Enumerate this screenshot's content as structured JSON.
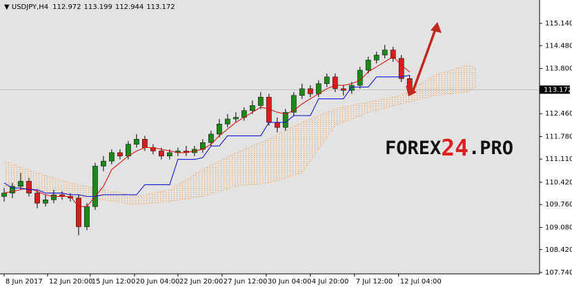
{
  "chart_data": {
    "type": "candlestick",
    "symbol": "USDJPY,H4",
    "header_ohlc": [
      {
        "value": 112.972,
        "label": "112.972"
      },
      {
        "value": 113.199,
        "label": "113.199"
      },
      {
        "value": 112.944,
        "label": "112.944"
      },
      {
        "value": 113.172,
        "label": "113.172"
      }
    ],
    "open": [
      110.0,
      110.1,
      110.3,
      110.45,
      110.1,
      109.8,
      109.9,
      110.05,
      110.0,
      109.95,
      109.1,
      109.7,
      110.9,
      111.05,
      111.3,
      111.2,
      111.55,
      111.7,
      111.45,
      111.35,
      111.2,
      111.3,
      111.35,
      111.3,
      111.4,
      111.6,
      111.85,
      112.15,
      112.3,
      112.35,
      112.55,
      112.7,
      112.95,
      112.2,
      112.05,
      112.5,
      113.0,
      113.2,
      113.05,
      113.35,
      113.55,
      113.2,
      113.15,
      113.3,
      113.75,
      114.05,
      114.2,
      114.35,
      114.1,
      113.5
    ],
    "high": [
      110.25,
      110.4,
      110.7,
      110.55,
      110.2,
      110.05,
      110.2,
      110.15,
      110.1,
      110.05,
      109.8,
      111.0,
      111.2,
      111.4,
      111.4,
      111.65,
      111.85,
      111.8,
      111.55,
      111.45,
      111.4,
      111.45,
      111.5,
      111.5,
      111.7,
      111.95,
      112.3,
      112.45,
      112.5,
      112.65,
      112.85,
      113.1,
      113.05,
      112.35,
      112.6,
      113.1,
      113.35,
      113.3,
      113.45,
      113.65,
      113.65,
      113.3,
      113.4,
      113.85,
      114.15,
      114.3,
      114.5,
      114.45,
      114.2,
      113.6
    ],
    "low": [
      109.85,
      109.95,
      110.2,
      110.0,
      109.65,
      109.7,
      109.8,
      109.9,
      109.85,
      108.85,
      109.0,
      109.6,
      110.75,
      110.95,
      111.1,
      111.1,
      111.45,
      111.35,
      111.25,
      111.1,
      111.1,
      111.2,
      111.2,
      111.2,
      111.3,
      111.5,
      111.75,
      112.05,
      112.2,
      112.25,
      112.45,
      112.6,
      112.1,
      111.9,
      111.95,
      112.4,
      112.9,
      112.95,
      112.95,
      113.25,
      113.1,
      113.0,
      113.05,
      113.2,
      113.65,
      113.95,
      114.1,
      114.0,
      113.4,
      113.05
    ],
    "close": [
      110.1,
      110.3,
      110.45,
      110.1,
      109.8,
      109.9,
      110.05,
      110.0,
      109.95,
      109.1,
      109.7,
      110.9,
      111.05,
      111.3,
      111.2,
      111.55,
      111.7,
      111.45,
      111.35,
      111.2,
      111.3,
      111.35,
      111.3,
      111.4,
      111.6,
      111.85,
      112.15,
      112.3,
      112.35,
      112.55,
      112.7,
      112.95,
      112.2,
      112.05,
      112.5,
      113.0,
      113.2,
      113.05,
      113.35,
      113.55,
      113.2,
      113.15,
      113.3,
      113.75,
      114.05,
      114.2,
      114.35,
      114.1,
      113.5,
      113.17
    ],
    "up_color": "#1b8a1b",
    "down_color": "#d81e1e",
    "lines": [
      {
        "color": "#e00000",
        "values": [
          110.1,
          110.15,
          110.2,
          110.25,
          110.15,
          110.05,
          110.0,
          110.0,
          110.0,
          109.7,
          109.7,
          110.0,
          110.3,
          110.8,
          111.0,
          111.2,
          111.35,
          111.45,
          111.45,
          111.4,
          111.35,
          111.3,
          111.3,
          111.35,
          111.4,
          111.55,
          111.8,
          112.0,
          112.2,
          112.35,
          112.5,
          112.65,
          112.6,
          112.5,
          112.45,
          112.55,
          112.75,
          112.9,
          113.05,
          113.2,
          113.3,
          113.3,
          113.35,
          113.45,
          113.7,
          113.85,
          114.0,
          114.15,
          113.9,
          113.7
        ]
      },
      {
        "color": "#0000e0",
        "values": [
          110.4,
          110.25,
          110.25,
          110.2,
          110.2,
          110.1,
          110.1,
          110.1,
          110.05,
          110.05,
          110.0,
          110.0,
          110.05,
          110.05,
          110.05,
          110.05,
          110.05,
          110.35,
          110.35,
          110.35,
          110.35,
          111.1,
          111.1,
          111.1,
          111.15,
          111.5,
          111.5,
          111.8,
          111.8,
          111.8,
          111.8,
          111.8,
          112.2,
          112.2,
          112.2,
          112.4,
          112.4,
          112.4,
          112.9,
          112.9,
          112.9,
          112.9,
          113.25,
          113.25,
          113.25,
          113.55,
          113.55,
          113.55,
          113.55,
          113.6
        ]
      }
    ],
    "cloud_x": [
      0,
      4,
      8,
      12,
      16,
      20,
      24,
      28,
      32,
      36,
      40,
      44,
      48,
      52,
      56,
      57
    ],
    "cloud_a": [
      111.05,
      110.7,
      110.4,
      110.2,
      110.0,
      110.2,
      110.8,
      111.3,
      111.7,
      112.2,
      112.6,
      112.8,
      113.0,
      113.6,
      113.9,
      113.8
    ],
    "cloud_b": [
      110.3,
      110.2,
      110.0,
      109.9,
      109.75,
      109.85,
      110.0,
      110.3,
      110.4,
      110.7,
      112.1,
      112.5,
      112.75,
      113.0,
      113.1,
      113.25
    ],
    "cloud_color": "#f5a050",
    "ylim": [
      107.7,
      115.835
    ],
    "yticks": [
      {
        "value": 107.74,
        "label": "107.740"
      },
      {
        "value": 108.42,
        "label": "108.420"
      },
      {
        "value": 109.08,
        "label": "109.080"
      },
      {
        "value": 109.76,
        "label": "109.760"
      },
      {
        "value": 110.42,
        "label": "110.420"
      },
      {
        "value": 111.11,
        "label": "111.110"
      },
      {
        "value": 111.78,
        "label": "111.780"
      },
      {
        "value": 112.46,
        "label": "112.460"
      },
      {
        "value": 113.8,
        "label": "113.800"
      },
      {
        "value": 114.48,
        "label": "114.480"
      },
      {
        "value": 115.14,
        "label": "115.140"
      }
    ],
    "current_price": {
      "value": 113.172,
      "label": "113.172"
    },
    "xlim": [
      -0.5,
      64.7
    ],
    "xticks": [
      {
        "value": 0,
        "label": "8 Jun 2017"
      },
      {
        "value": 5.25,
        "label": "12 Jun 20:00"
      },
      {
        "value": 10.4,
        "label": "15 Jun 12:00"
      },
      {
        "value": 15.75,
        "label": "20 Jun 04:00"
      },
      {
        "value": 21,
        "label": "22 Jun 20:00"
      },
      {
        "value": 26.33,
        "label": "27 Jun 12:00"
      },
      {
        "value": 31.67,
        "label": "30 Jun 04:00"
      },
      {
        "value": 37,
        "label": "4 Jul 20:00"
      },
      {
        "value": 42.33,
        "label": "7 Jul 12:00"
      },
      {
        "value": 47.67,
        "label": "12 Jul 04:00"
      }
    ],
    "watermark": [
      "FOREX",
      "24",
      ".PRO"
    ]
  }
}
